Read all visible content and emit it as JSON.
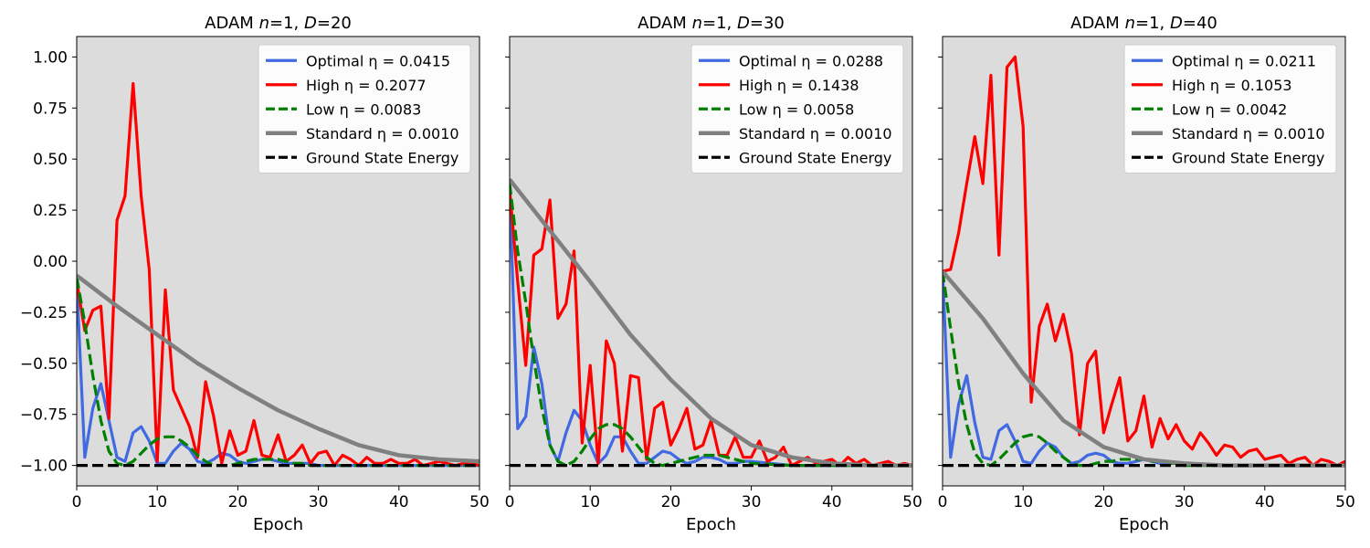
{
  "figure": {
    "background": "#ffffff",
    "plot_background": "#dcdcdc"
  },
  "chart_data": [
    {
      "type": "line",
      "title": "ADAM n=1, D=20",
      "title_parts": {
        "prefix": "ADAM ",
        "n_sym": "n",
        "n_val": "=1, ",
        "d_sym": "D",
        "d_val": "=20"
      },
      "xlabel": "Epoch",
      "ylabel": "",
      "xlim": [
        0,
        50
      ],
      "ylim": [
        -1.1,
        1.1
      ],
      "xticks": [
        0,
        10,
        20,
        30,
        40,
        50
      ],
      "yticks": [
        -1.0,
        -0.75,
        -0.5,
        -0.25,
        0.0,
        0.25,
        0.5,
        0.75,
        1.0
      ],
      "ytick_labels": [
        "−1.00",
        "−0.75",
        "−0.50",
        "−0.25",
        "0.00",
        "0.25",
        "0.50",
        "0.75",
        "1.00"
      ],
      "show_yticklabels": true,
      "legend": "top-right",
      "series": [
        {
          "name": "Optimal η = 0.0415",
          "color": "#4169e1",
          "dash": "solid",
          "x": [
            0,
            1,
            2,
            3,
            4,
            5,
            6,
            7,
            8,
            9,
            10,
            11,
            12,
            13,
            14,
            15,
            16,
            17,
            18,
            19,
            20,
            21,
            22,
            23,
            24,
            25,
            26,
            27,
            28,
            29,
            30,
            35,
            40,
            45,
            50
          ],
          "y": [
            -0.1,
            -0.96,
            -0.72,
            -0.6,
            -0.78,
            -0.96,
            -0.98,
            -0.84,
            -0.81,
            -0.88,
            -0.99,
            -0.99,
            -0.93,
            -0.89,
            -0.92,
            -0.98,
            -0.99,
            -0.97,
            -0.94,
            -0.95,
            -0.98,
            -0.99,
            -0.98,
            -0.97,
            -0.97,
            -0.98,
            -0.99,
            -0.99,
            -0.99,
            -0.99,
            -1.0,
            -1.0,
            -1.0,
            -1.0,
            -1.0
          ]
        },
        {
          "name": "High η = 0.2077",
          "color": "#ff0000",
          "dash": "solid",
          "x": [
            0,
            1,
            2,
            3,
            4,
            5,
            6,
            7,
            8,
            9,
            10,
            11,
            12,
            13,
            14,
            15,
            16,
            17,
            18,
            19,
            20,
            21,
            22,
            23,
            24,
            25,
            26,
            27,
            28,
            29,
            30,
            31,
            32,
            33,
            34,
            35,
            36,
            37,
            38,
            39,
            40,
            41,
            42,
            43,
            44,
            45,
            46,
            47,
            48,
            49,
            50
          ],
          "y": [
            -0.1,
            -0.34,
            -0.24,
            -0.22,
            -0.77,
            0.2,
            0.32,
            0.87,
            0.32,
            -0.04,
            -0.98,
            -0.14,
            -0.63,
            -0.72,
            -0.81,
            -0.96,
            -0.59,
            -0.76,
            -0.99,
            -0.83,
            -0.95,
            -0.93,
            -0.78,
            -0.95,
            -0.96,
            -0.85,
            -0.98,
            -0.95,
            -0.9,
            -0.99,
            -0.94,
            -0.93,
            -1.0,
            -0.95,
            -0.97,
            -1.0,
            -0.96,
            -0.99,
            -0.99,
            -0.97,
            -0.99,
            -0.99,
            -0.97,
            -1.0,
            -0.99,
            -0.98,
            -0.99,
            -1.0,
            -0.99,
            -0.99,
            -1.0
          ]
        },
        {
          "name": "Low η = 0.0083",
          "color": "#008000",
          "dash": "dashed",
          "x": [
            0,
            1,
            2,
            3,
            4,
            5,
            6,
            7,
            8,
            9,
            10,
            11,
            12,
            13,
            14,
            15,
            16,
            17,
            18,
            19,
            20,
            21,
            22,
            23,
            24,
            25,
            26,
            27,
            28,
            29,
            30,
            35,
            40,
            45,
            50
          ],
          "y": [
            -0.08,
            -0.3,
            -0.56,
            -0.78,
            -0.93,
            -0.99,
            -1.0,
            -0.98,
            -0.94,
            -0.9,
            -0.87,
            -0.86,
            -0.86,
            -0.88,
            -0.91,
            -0.95,
            -0.98,
            -1.0,
            -1.0,
            -1.0,
            -0.99,
            -0.98,
            -0.97,
            -0.97,
            -0.97,
            -0.97,
            -0.98,
            -0.99,
            -0.99,
            -1.0,
            -1.0,
            -1.0,
            -1.0,
            -1.0,
            -1.0
          ]
        },
        {
          "name": "Standard η = 0.0010",
          "color": "#808080",
          "dash": "solid",
          "width_scale": 1.4,
          "x": [
            0,
            5,
            10,
            15,
            20,
            25,
            30,
            35,
            40,
            45,
            50
          ],
          "y": [
            -0.07,
            -0.22,
            -0.36,
            -0.5,
            -0.62,
            -0.73,
            -0.82,
            -0.9,
            -0.95,
            -0.97,
            -0.98
          ]
        },
        {
          "name": "Ground State Energy",
          "color": "#000000",
          "dash": "dashed",
          "x": [
            0,
            50
          ],
          "y": [
            -1.0,
            -1.0
          ]
        }
      ]
    },
    {
      "type": "line",
      "title": "ADAM n=1, D=30",
      "title_parts": {
        "prefix": "ADAM ",
        "n_sym": "n",
        "n_val": "=1, ",
        "d_sym": "D",
        "d_val": "=30"
      },
      "xlabel": "Epoch",
      "ylabel": "",
      "xlim": [
        0,
        50
      ],
      "ylim": [
        -1.1,
        1.1
      ],
      "xticks": [
        0,
        10,
        20,
        30,
        40,
        50
      ],
      "yticks": [
        -1.0,
        -0.75,
        -0.5,
        -0.25,
        0.0,
        0.25,
        0.5,
        0.75,
        1.0
      ],
      "show_yticklabels": false,
      "legend": "top-right",
      "series": [
        {
          "name": "Optimal η = 0.0288",
          "color": "#4169e1",
          "dash": "solid",
          "x": [
            0,
            1,
            2,
            3,
            4,
            5,
            6,
            7,
            8,
            9,
            10,
            11,
            12,
            13,
            14,
            15,
            16,
            17,
            18,
            19,
            20,
            21,
            22,
            23,
            24,
            25,
            26,
            27,
            28,
            29,
            30,
            35,
            40,
            45,
            50
          ],
          "y": [
            0.35,
            -0.82,
            -0.76,
            -0.42,
            -0.6,
            -0.9,
            -0.98,
            -0.84,
            -0.73,
            -0.78,
            -0.9,
            -0.99,
            -0.95,
            -0.86,
            -0.86,
            -0.93,
            -0.99,
            -0.99,
            -0.96,
            -0.93,
            -0.94,
            -0.97,
            -0.99,
            -0.98,
            -0.96,
            -0.96,
            -0.97,
            -0.99,
            -0.99,
            -0.98,
            -0.98,
            -1.0,
            -1.0,
            -1.0,
            -1.0
          ]
        },
        {
          "name": "High η = 0.1438",
          "color": "#ff0000",
          "dash": "solid",
          "x": [
            0,
            1,
            2,
            3,
            4,
            5,
            6,
            7,
            8,
            9,
            10,
            11,
            12,
            13,
            14,
            15,
            16,
            17,
            18,
            19,
            20,
            21,
            22,
            23,
            24,
            25,
            26,
            27,
            28,
            29,
            30,
            31,
            32,
            33,
            34,
            35,
            36,
            37,
            38,
            39,
            40,
            41,
            42,
            43,
            44,
            45,
            46,
            47,
            48,
            49,
            50
          ],
          "y": [
            0.35,
            -0.1,
            -0.51,
            0.03,
            0.06,
            0.3,
            -0.28,
            -0.21,
            0.05,
            -0.89,
            -0.51,
            -0.99,
            -0.39,
            -0.5,
            -0.93,
            -0.56,
            -0.57,
            -0.97,
            -0.72,
            -0.69,
            -0.9,
            -0.82,
            -0.72,
            -0.92,
            -0.9,
            -0.78,
            -0.95,
            -0.95,
            -0.86,
            -0.96,
            -0.96,
            -0.88,
            -0.98,
            -0.96,
            -0.91,
            -1.0,
            -0.98,
            -0.96,
            -0.99,
            -0.98,
            -0.97,
            -1.0,
            -0.96,
            -0.99,
            -0.97,
            -1.0,
            -0.99,
            -0.98,
            -1.0,
            -0.99,
            -1.0
          ]
        },
        {
          "name": "Low η = 0.0058",
          "color": "#008000",
          "dash": "dashed",
          "x": [
            0,
            1,
            2,
            3,
            4,
            5,
            6,
            7,
            8,
            9,
            10,
            11,
            12,
            13,
            14,
            15,
            16,
            17,
            18,
            19,
            20,
            21,
            22,
            23,
            24,
            25,
            26,
            27,
            28,
            29,
            30,
            35,
            40,
            45,
            50
          ],
          "y": [
            0.38,
            0.05,
            -0.2,
            -0.48,
            -0.72,
            -0.9,
            -0.98,
            -1.0,
            -0.98,
            -0.93,
            -0.87,
            -0.82,
            -0.8,
            -0.8,
            -0.82,
            -0.86,
            -0.91,
            -0.96,
            -0.99,
            -1.0,
            -0.99,
            -0.98,
            -0.97,
            -0.96,
            -0.95,
            -0.95,
            -0.95,
            -0.96,
            -0.97,
            -0.98,
            -0.99,
            -1.0,
            -1.0,
            -1.0,
            -1.0
          ]
        },
        {
          "name": "Standard η = 0.0010",
          "color": "#808080",
          "dash": "solid",
          "width_scale": 1.4,
          "x": [
            0,
            5,
            10,
            15,
            20,
            25,
            30,
            35,
            40,
            45,
            50
          ],
          "y": [
            0.4,
            0.15,
            -0.1,
            -0.36,
            -0.58,
            -0.77,
            -0.9,
            -0.96,
            -0.99,
            -1.0,
            -1.0
          ]
        },
        {
          "name": "Ground State Energy",
          "color": "#000000",
          "dash": "dashed",
          "x": [
            0,
            50
          ],
          "y": [
            -1.0,
            -1.0
          ]
        }
      ]
    },
    {
      "type": "line",
      "title": "ADAM n=1, D=40",
      "title_parts": {
        "prefix": "ADAM ",
        "n_sym": "n",
        "n_val": "=1, ",
        "d_sym": "D",
        "d_val": "=40"
      },
      "xlabel": "Epoch",
      "ylabel": "",
      "xlim": [
        0,
        50
      ],
      "ylim": [
        -1.1,
        1.1
      ],
      "xticks": [
        0,
        10,
        20,
        30,
        40,
        50
      ],
      "yticks": [
        -1.0,
        -0.75,
        -0.5,
        -0.25,
        0.0,
        0.25,
        0.5,
        0.75,
        1.0
      ],
      "show_yticklabels": false,
      "legend": "top-right",
      "series": [
        {
          "name": "Optimal η = 0.0211",
          "color": "#4169e1",
          "dash": "solid",
          "x": [
            0,
            1,
            2,
            3,
            4,
            5,
            6,
            7,
            8,
            9,
            10,
            11,
            12,
            13,
            14,
            15,
            16,
            17,
            18,
            19,
            20,
            21,
            22,
            23,
            24,
            25,
            26,
            27,
            28,
            29,
            30,
            35,
            40,
            45,
            50
          ],
          "y": [
            -0.05,
            -0.96,
            -0.7,
            -0.56,
            -0.79,
            -0.96,
            -0.97,
            -0.83,
            -0.8,
            -0.88,
            -0.98,
            -0.99,
            -0.93,
            -0.89,
            -0.91,
            -0.96,
            -0.99,
            -0.98,
            -0.95,
            -0.94,
            -0.95,
            -0.98,
            -0.99,
            -0.99,
            -0.98,
            -0.97,
            -0.98,
            -0.99,
            -0.99,
            -0.99,
            -0.99,
            -1.0,
            -1.0,
            -1.0,
            -1.0
          ]
        },
        {
          "name": "High η = 0.1053",
          "color": "#ff0000",
          "dash": "solid",
          "x": [
            0,
            1,
            2,
            3,
            4,
            5,
            6,
            7,
            8,
            9,
            10,
            11,
            12,
            13,
            14,
            15,
            16,
            17,
            18,
            19,
            20,
            21,
            22,
            23,
            24,
            25,
            26,
            27,
            28,
            29,
            30,
            31,
            32,
            33,
            34,
            35,
            36,
            37,
            38,
            39,
            40,
            41,
            42,
            43,
            44,
            45,
            46,
            47,
            48,
            49,
            50
          ],
          "y": [
            -0.05,
            -0.04,
            0.14,
            0.38,
            0.61,
            0.38,
            0.91,
            0.03,
            0.95,
            1.0,
            0.66,
            -0.69,
            -0.32,
            -0.21,
            -0.39,
            -0.26,
            -0.45,
            -0.85,
            -0.5,
            -0.44,
            -0.84,
            -0.7,
            -0.57,
            -0.88,
            -0.83,
            -0.66,
            -0.91,
            -0.77,
            -0.87,
            -0.8,
            -0.88,
            -0.92,
            -0.84,
            -0.89,
            -0.95,
            -0.9,
            -0.91,
            -0.96,
            -0.93,
            -0.92,
            -0.97,
            -0.96,
            -0.95,
            -0.99,
            -0.97,
            -0.96,
            -1.0,
            -0.97,
            -0.98,
            -1.0,
            -0.98
          ]
        },
        {
          "name": "Low η = 0.0042",
          "color": "#008000",
          "dash": "dashed",
          "x": [
            0,
            1,
            2,
            3,
            4,
            5,
            6,
            7,
            8,
            9,
            10,
            11,
            12,
            13,
            14,
            15,
            16,
            17,
            18,
            19,
            20,
            21,
            22,
            23,
            24,
            25,
            26,
            27,
            28,
            29,
            30,
            35,
            40,
            45,
            50
          ],
          "y": [
            -0.05,
            -0.33,
            -0.6,
            -0.8,
            -0.94,
            -0.99,
            -1.0,
            -0.97,
            -0.93,
            -0.89,
            -0.86,
            -0.85,
            -0.86,
            -0.89,
            -0.93,
            -0.96,
            -0.99,
            -1.0,
            -1.0,
            -0.99,
            -0.98,
            -0.98,
            -0.97,
            -0.97,
            -0.97,
            -0.97,
            -0.98,
            -0.98,
            -0.99,
            -0.99,
            -1.0,
            -1.0,
            -1.0,
            -1.0,
            -1.0
          ]
        },
        {
          "name": "Standard η = 0.0010",
          "color": "#808080",
          "dash": "solid",
          "width_scale": 1.4,
          "x": [
            0,
            5,
            10,
            15,
            20,
            25,
            30,
            35,
            40,
            45,
            50
          ],
          "y": [
            -0.05,
            -0.28,
            -0.55,
            -0.78,
            -0.91,
            -0.97,
            -0.99,
            -1.0,
            -1.0,
            -1.0,
            -1.0
          ]
        },
        {
          "name": "Ground State Energy",
          "color": "#000000",
          "dash": "dashed",
          "x": [
            0,
            50
          ],
          "y": [
            -1.0,
            -1.0
          ]
        }
      ]
    }
  ]
}
